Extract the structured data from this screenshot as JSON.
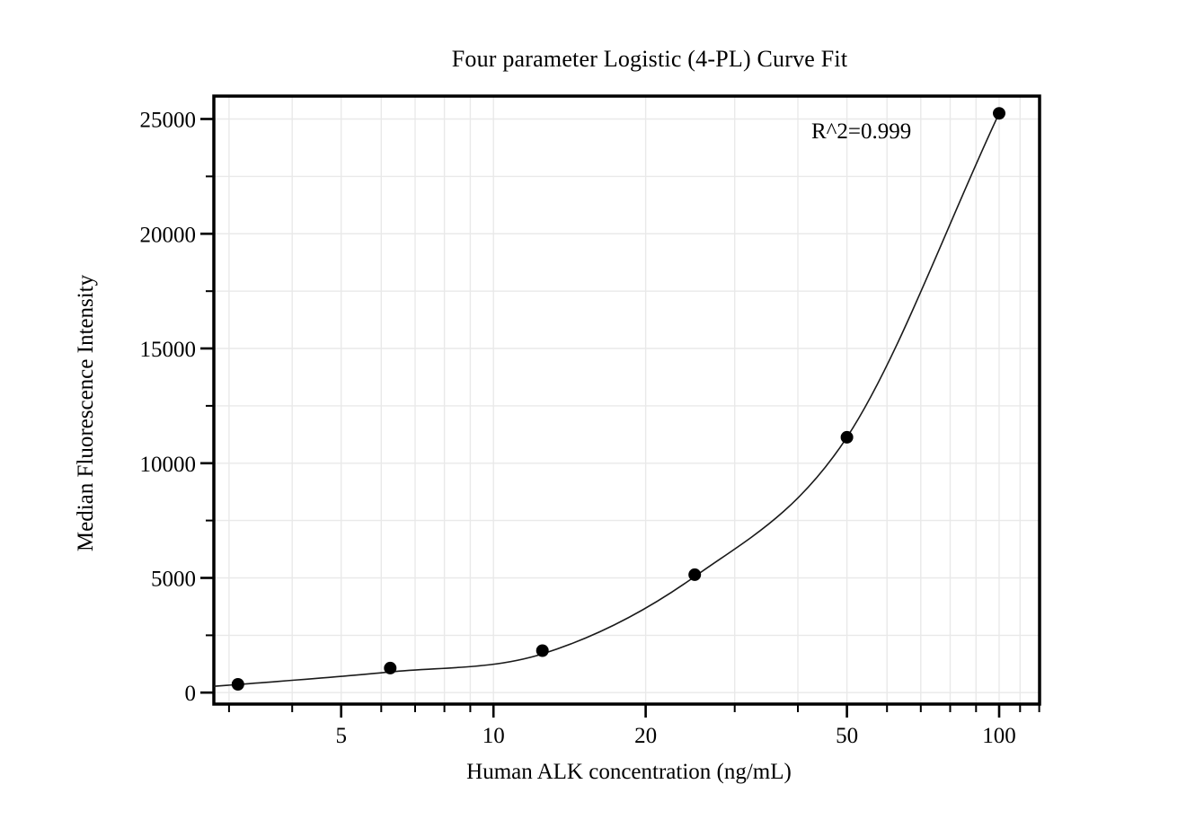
{
  "chart_data": {
    "type": "scatter",
    "title": "Four parameter Logistic (4-PL) Curve Fit",
    "xlabel": "Human ALK concentration (ng/mL)",
    "ylabel": "Median Fluorescence Intensity",
    "annotation": "R^2=0.999",
    "x_scale": "log",
    "xlim": [
      2.8,
      120.2
    ],
    "ylim": [
      -500,
      26000
    ],
    "grid": true,
    "legend": "none",
    "x_major_ticks": [
      5,
      10,
      20,
      50,
      100
    ],
    "x_minor_ticks": [
      3,
      4,
      6,
      7,
      8,
      9,
      30,
      40,
      60,
      70,
      80,
      90,
      110,
      120
    ],
    "y_major_ticks": [
      0,
      5000,
      10000,
      15000,
      20000,
      25000
    ],
    "y_minor_ticks": [
      2500,
      7500,
      12500,
      17500,
      22500
    ],
    "series": [
      {
        "name": "standard-points",
        "type": "scatter",
        "x": [
          3.125,
          6.25,
          12.5,
          25,
          50,
          100
        ],
        "y": [
          360,
          1070,
          1830,
          5140,
          11130,
          25250
        ]
      },
      {
        "name": "4pl-fit-curve",
        "type": "line",
        "x": [
          2.8,
          3.125,
          6.25,
          12.5,
          25,
          50,
          100
        ],
        "y": [
          275,
          355,
          900,
          1690,
          5060,
          11130,
          25250
        ]
      }
    ],
    "colors": {
      "points": "#000000",
      "curve": "#1a1a1a",
      "grid": "#e9e9e9",
      "axis": "#000000",
      "text": "#000000",
      "background": "#ffffff"
    }
  }
}
